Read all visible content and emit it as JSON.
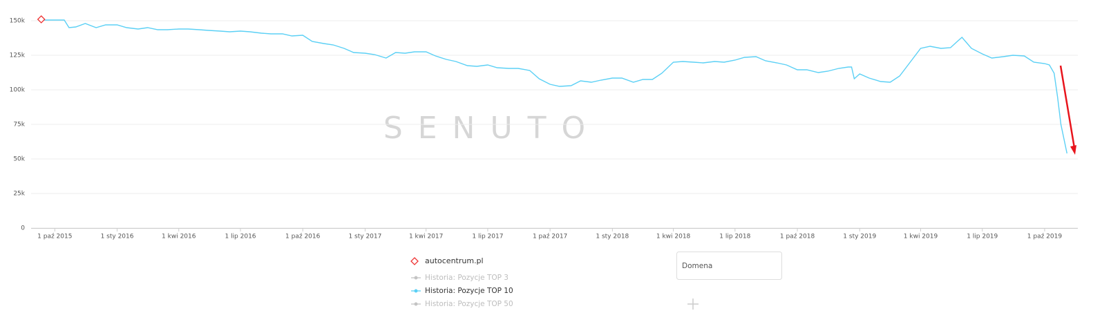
{
  "chart_data": {
    "type": "line",
    "watermark": "SENUTO",
    "domain_label": "autocentrum.pl",
    "input_placeholder": "Domena",
    "xlim": [
      "2015-08-27",
      "2019-11-19"
    ],
    "xticks": [
      {
        "value": "2015-10-01",
        "label": "1 paź 2015"
      },
      {
        "value": "2016-01-01",
        "label": "1 sty 2016"
      },
      {
        "value": "2016-04-01",
        "label": "1 kwi 2016"
      },
      {
        "value": "2016-07-01",
        "label": "1 lip 2016"
      },
      {
        "value": "2016-10-01",
        "label": "1 paź 2016"
      },
      {
        "value": "2017-01-01",
        "label": "1 sty 2017"
      },
      {
        "value": "2017-04-01",
        "label": "1 kwi 2017"
      },
      {
        "value": "2017-07-01",
        "label": "1 lip 2017"
      },
      {
        "value": "2017-10-01",
        "label": "1 paź 2017"
      },
      {
        "value": "2018-01-01",
        "label": "1 sty 2018"
      },
      {
        "value": "2018-04-01",
        "label": "1 kwi 2018"
      },
      {
        "value": "2018-07-01",
        "label": "1 lip 2018"
      },
      {
        "value": "2018-10-01",
        "label": "1 paź 2018"
      },
      {
        "value": "2019-01-01",
        "label": "1 sty 2019"
      },
      {
        "value": "2019-04-01",
        "label": "1 kwi 2019"
      },
      {
        "value": "2019-07-01",
        "label": "1 lip 2019"
      },
      {
        "value": "2019-10-01",
        "label": "1 paź 2019"
      }
    ],
    "ylim": [
      0,
      160000
    ],
    "yticks": [
      0,
      {
        "value": 25000,
        "label": "25k"
      },
      {
        "value": 50000,
        "label": "50k"
      },
      {
        "value": 75000,
        "label": "75k"
      },
      {
        "value": 100000,
        "label": "100k"
      },
      {
        "value": 125000,
        "label": "125k"
      },
      {
        "value": 150000,
        "label": "150k"
      }
    ],
    "grid": true,
    "x": [
      "2015-09-11",
      "2015-09-15",
      "2015-10-01",
      "2015-10-15",
      "2015-10-22",
      "2015-11-01",
      "2015-11-15",
      "2015-12-01",
      "2015-12-15",
      "2016-01-01",
      "2016-01-15",
      "2016-02-01",
      "2016-02-15",
      "2016-03-01",
      "2016-03-15",
      "2016-04-01",
      "2016-04-15",
      "2016-05-01",
      "2016-05-15",
      "2016-06-01",
      "2016-06-15",
      "2016-07-01",
      "2016-07-15",
      "2016-08-01",
      "2016-08-15",
      "2016-09-01",
      "2016-09-15",
      "2016-10-01",
      "2016-10-15",
      "2016-11-01",
      "2016-11-15",
      "2016-12-01",
      "2016-12-15",
      "2017-01-01",
      "2017-01-15",
      "2017-02-01",
      "2017-02-15",
      "2017-03-01",
      "2017-03-15",
      "2017-04-01",
      "2017-04-15",
      "2017-05-01",
      "2017-05-15",
      "2017-06-01",
      "2017-06-15",
      "2017-07-01",
      "2017-07-15",
      "2017-08-01",
      "2017-08-15",
      "2017-09-01",
      "2017-09-15",
      "2017-10-01",
      "2017-10-15",
      "2017-11-01",
      "2017-11-15",
      "2017-12-01",
      "2017-12-15",
      "2018-01-01",
      "2018-01-15",
      "2018-02-01",
      "2018-02-15",
      "2018-03-01",
      "2018-03-15",
      "2018-04-01",
      "2018-04-15",
      "2018-05-01",
      "2018-05-15",
      "2018-06-01",
      "2018-06-15",
      "2018-07-01",
      "2018-07-15",
      "2018-08-01",
      "2018-08-15",
      "2018-09-01",
      "2018-09-15",
      "2018-10-01",
      "2018-10-15",
      "2018-11-01",
      "2018-11-15",
      "2018-12-01",
      "2018-12-15",
      "2018-12-20",
      "2018-12-24",
      "2019-01-01",
      "2019-01-15",
      "2019-02-01",
      "2019-02-15",
      "2019-03-01",
      "2019-03-15",
      "2019-04-01",
      "2019-04-15",
      "2019-05-01",
      "2019-05-15",
      "2019-05-25",
      "2019-06-01",
      "2019-06-15",
      "2019-07-01",
      "2019-07-15",
      "2019-08-01",
      "2019-08-15",
      "2019-09-01",
      "2019-09-15",
      "2019-10-01",
      "2019-10-08",
      "2019-10-15",
      "2019-10-20",
      "2019-10-25",
      "2019-11-03"
    ],
    "series": [
      {
        "name": "Historia: Pozycje TOP 10",
        "color": "#5bd0f5",
        "values": [
          151000,
          150500,
          150500,
          150500,
          145000,
          145500,
          148000,
          145000,
          147000,
          147000,
          145000,
          144000,
          145000,
          143500,
          143500,
          144000,
          144000,
          143500,
          143000,
          142500,
          142000,
          142500,
          142000,
          141000,
          140500,
          140500,
          139000,
          139500,
          135000,
          133500,
          132500,
          130000,
          127000,
          126500,
          125500,
          123000,
          127000,
          126500,
          127500,
          127500,
          124500,
          122000,
          120500,
          117500,
          117000,
          118000,
          116000,
          115500,
          115500,
          114000,
          108000,
          104000,
          102500,
          103000,
          106500,
          105500,
          107000,
          108500,
          108500,
          105500,
          107500,
          107500,
          112000,
          120000,
          120500,
          120000,
          119500,
          120500,
          120000,
          121500,
          123500,
          124000,
          121000,
          119500,
          118000,
          114500,
          114500,
          112500,
          113500,
          115500,
          116500,
          116500,
          108000,
          111500,
          108500,
          106000,
          105500,
          110000,
          119000,
          130000,
          131500,
          130000,
          130500,
          135000,
          138000,
          130000,
          126000,
          123000,
          124000,
          125000,
          124500,
          120000,
          119000,
          118000,
          112000,
          95000,
          75000,
          54000
        ]
      }
    ],
    "hidden_series": [
      {
        "name": "Historia: Pozycje TOP 3",
        "color": "#c4c4c4"
      },
      {
        "name": "Historia: Pozycje TOP 50",
        "color": "#c4c4c4"
      }
    ]
  }
}
